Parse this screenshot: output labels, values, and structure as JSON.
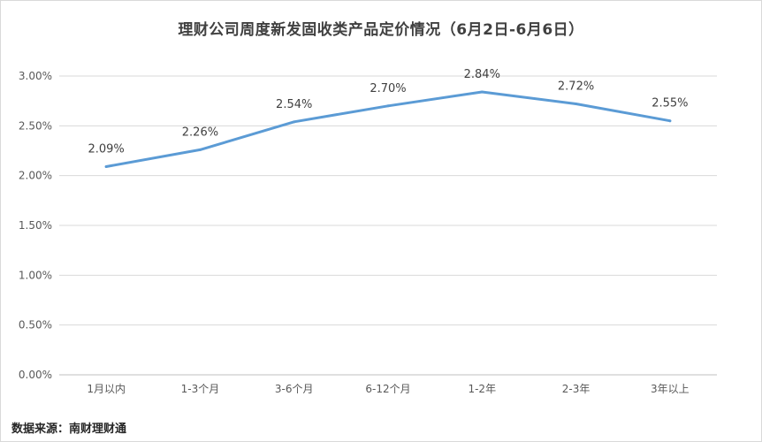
{
  "chart_data": {
    "type": "line",
    "title": "理财公司周度新发固收类产品定价情况（6月2日-6月6日）",
    "categories": [
      "1月以内",
      "1-3个月",
      "3-6个月",
      "6-12个月",
      "1-2年",
      "2-3年",
      "3年以上"
    ],
    "series": [
      {
        "values": [
          2.09,
          2.26,
          2.54,
          2.7,
          2.84,
          2.72,
          2.55
        ],
        "data_labels": [
          "2.09%",
          "2.26%",
          "2.54%",
          "2.70%",
          "2.84%",
          "2.72%",
          "2.55%"
        ],
        "color": "#5b9bd5"
      }
    ],
    "y_ticks": [
      0,
      0.5,
      1.0,
      1.5,
      2.0,
      2.5,
      3.0
    ],
    "y_tick_labels": [
      "0.00%",
      "0.50%",
      "1.00%",
      "1.50%",
      "2.00%",
      "2.50%",
      "3.00%"
    ],
    "ylim": [
      0,
      3.0
    ],
    "grid": true,
    "legend": "none",
    "xlabel": "",
    "ylabel": ""
  },
  "source": "数据来源：南财理财通",
  "colors": {
    "line": "#5b9bd5",
    "grid": "#d9d9d9",
    "axis_text": "#595959",
    "label_text": "#404040"
  }
}
